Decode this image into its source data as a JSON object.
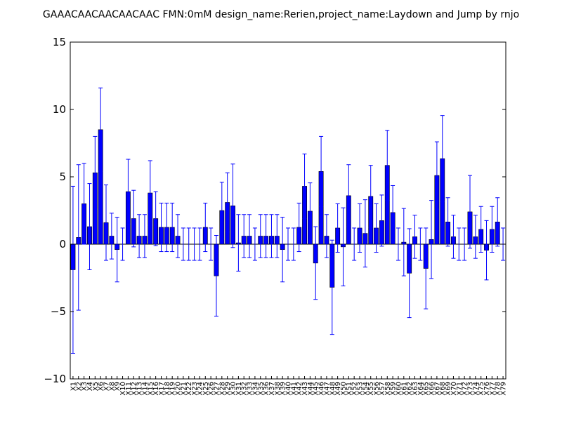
{
  "chart_data": {
    "type": "bar",
    "title": "GAAACAACAACAACAAC  FMN:0mM  design_name:Rerien,project_name:Laydown and Jump by rnjo",
    "xlabel": "",
    "ylabel": "",
    "ylim": [
      -10,
      15
    ],
    "yticks": [
      -10,
      -5,
      0,
      5,
      10,
      15
    ],
    "ytick_labels": [
      "−10",
      "−5",
      "0",
      "5",
      "10",
      "15"
    ],
    "grid": false,
    "bar_color": "#0000ff",
    "error_color": "#0000ff",
    "categories": [
      "X1",
      "X2",
      "X3",
      "X4",
      "X5",
      "X6",
      "X7",
      "X8",
      "X9",
      "X10",
      "X11",
      "X12",
      "X13",
      "X14",
      "X15",
      "X16",
      "X17",
      "X18",
      "X19",
      "X20",
      "X21",
      "X22",
      "X23",
      "X24",
      "X25",
      "X26",
      "X27",
      "X28",
      "X29",
      "X30",
      "X31",
      "X32",
      "X33",
      "X34",
      "X35",
      "X36",
      "X37",
      "X38",
      "X39",
      "X40",
      "X41",
      "X42",
      "X43",
      "X44",
      "X45",
      "X46",
      "X47",
      "X48",
      "X49",
      "X50",
      "X51",
      "X52",
      "X53",
      "X54",
      "X55",
      "X56",
      "X57",
      "X58",
      "X59",
      "X60",
      "X61",
      "X62",
      "X63",
      "X64",
      "X65",
      "X66",
      "X67",
      "X68",
      "X69",
      "X70",
      "X71",
      "X72",
      "X73",
      "X74",
      "X75",
      "X76",
      "X77",
      "X78",
      "X79"
    ],
    "values": [
      -1.9,
      0.5,
      3.0,
      1.3,
      5.3,
      8.5,
      1.6,
      0.6,
      -0.4,
      0.0,
      3.9,
      1.9,
      0.6,
      0.6,
      3.8,
      1.9,
      1.25,
      1.25,
      1.25,
      0.6,
      0.0,
      0.0,
      0.0,
      0.0,
      1.25,
      0.0,
      -2.35,
      2.5,
      3.1,
      2.85,
      0.1,
      0.6,
      0.6,
      0.0,
      0.6,
      0.6,
      0.6,
      0.6,
      -0.4,
      0.0,
      0.0,
      1.25,
      4.3,
      2.45,
      -1.4,
      5.4,
      0.6,
      -3.2,
      1.2,
      -0.2,
      3.6,
      0.0,
      1.2,
      0.8,
      3.55,
      1.2,
      1.75,
      5.85,
      2.35,
      0.0,
      0.15,
      -2.15,
      0.55,
      0.0,
      -1.8,
      0.35,
      5.1,
      6.35,
      1.65,
      0.55,
      0.0,
      0.0,
      2.4,
      0.55,
      1.1,
      -0.45,
      1.1,
      1.65,
      0.0
    ],
    "errors": [
      6.2,
      5.4,
      3.0,
      3.2,
      2.7,
      3.1,
      2.8,
      1.7,
      2.4,
      1.2,
      2.4,
      2.1,
      1.6,
      1.6,
      2.4,
      2.0,
      1.8,
      1.8,
      1.8,
      1.6,
      1.2,
      1.2,
      1.2,
      1.2,
      1.8,
      1.2,
      3.0,
      2.1,
      2.2,
      3.1,
      2.1,
      1.6,
      1.6,
      1.2,
      1.6,
      1.6,
      1.6,
      1.6,
      2.4,
      1.2,
      1.2,
      1.8,
      2.4,
      2.1,
      2.7,
      2.6,
      1.6,
      3.5,
      1.8,
      2.9,
      2.3,
      1.2,
      1.8,
      2.5,
      2.3,
      1.8,
      1.9,
      2.6,
      2.0,
      1.2,
      2.5,
      3.3,
      1.6,
      1.2,
      3.0,
      2.9,
      2.5,
      3.2,
      1.8,
      1.6,
      1.2,
      1.2,
      2.7,
      1.6,
      1.7,
      2.2,
      1.7,
      1.8,
      1.2
    ]
  }
}
